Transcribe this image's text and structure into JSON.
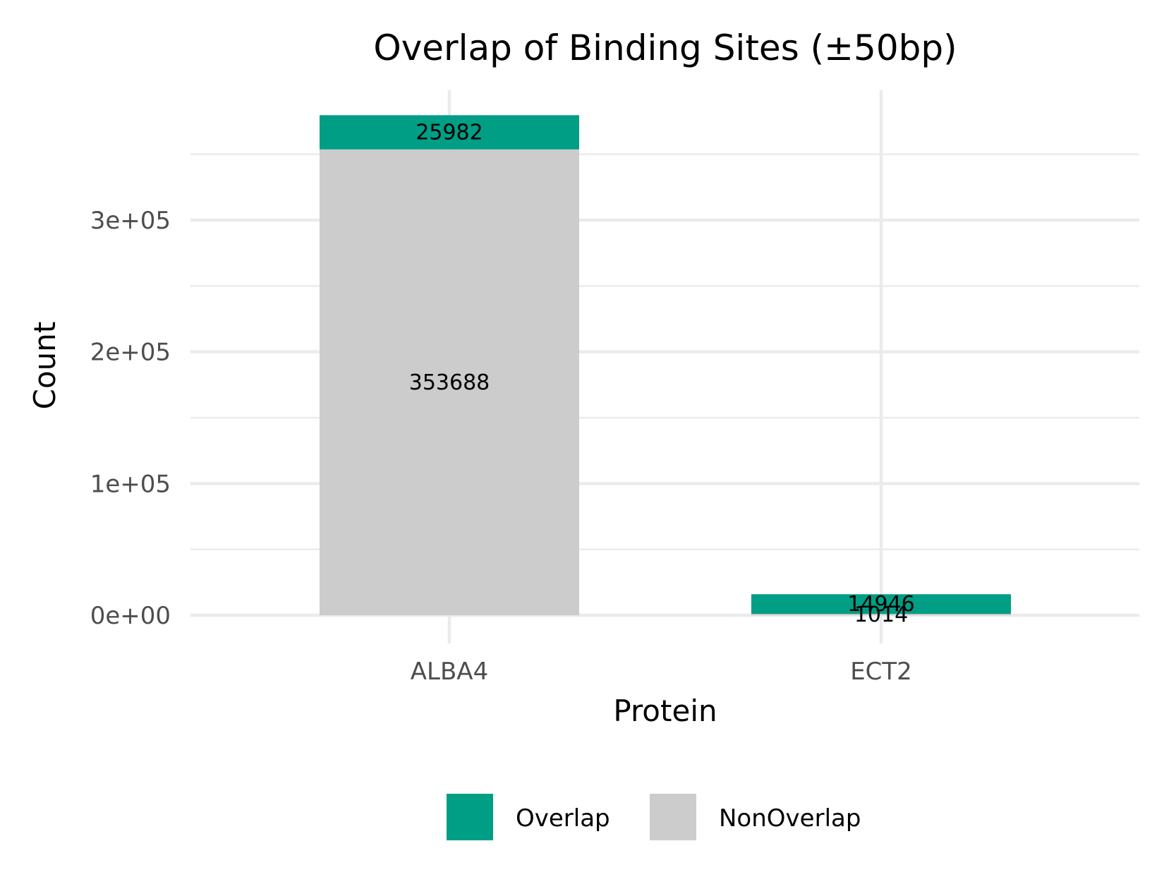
{
  "chart_data": {
    "type": "bar",
    "stacked": true,
    "title": "Overlap of Binding Sites (±50bp)",
    "xlabel": "Protein",
    "ylabel": "Count",
    "categories": [
      "ALBA4",
      "ECT2"
    ],
    "series": [
      {
        "name": "NonOverlap",
        "values": [
          353688,
          1014
        ],
        "color": "#cccccc"
      },
      {
        "name": "Overlap",
        "values": [
          25982,
          14946
        ],
        "color": "#009e84"
      }
    ],
    "ylim": [
      0,
      380000
    ],
    "yticks": [
      0,
      100000,
      200000,
      300000
    ],
    "ytick_labels": [
      "0e+00",
      "1e+05",
      "2e+05",
      "3e+05"
    ],
    "grid": true,
    "legend": {
      "position": "bottom",
      "entries": [
        {
          "label": "Overlap",
          "color": "#009e84"
        },
        {
          "label": "NonOverlap",
          "color": "#cccccc"
        }
      ]
    }
  }
}
